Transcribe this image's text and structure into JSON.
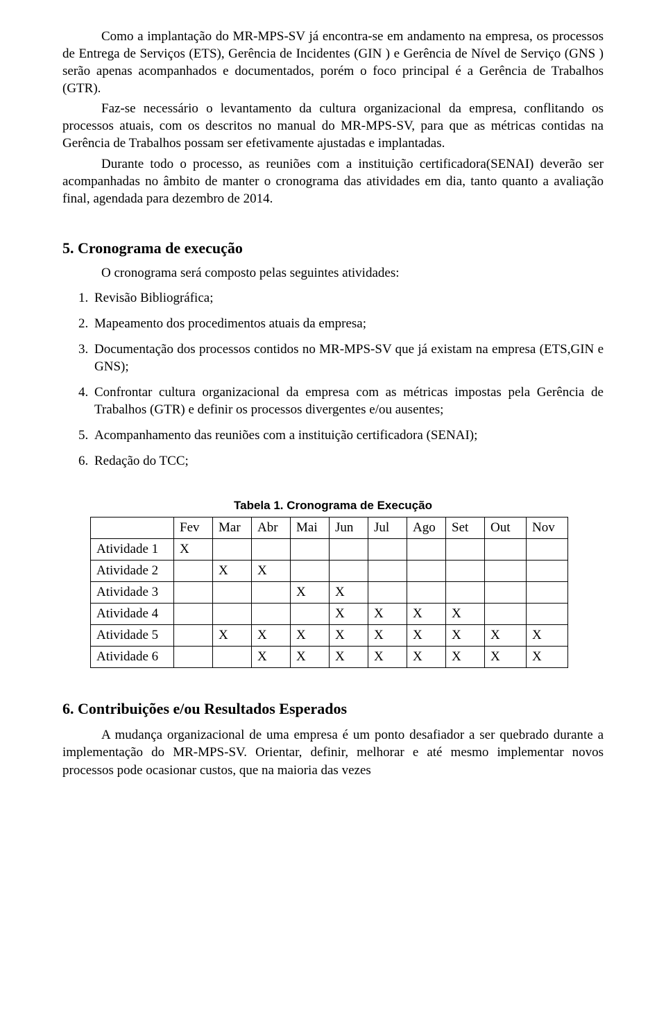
{
  "paragraphs": {
    "p1": "Como a implantação do MR-MPS-SV já encontra-se em andamento na empresa, os processos de Entrega de Serviços (ETS), Gerência de Incidentes (GIN ) e Gerência de Nível de Serviço (GNS ) serão apenas acompanhados e documentados, porém o foco principal é a Gerência de Trabalhos (GTR).",
    "p2": "Faz-se necessário o levantamento da cultura organizacional da empresa, conflitando os processos atuais, com os descritos no manual do MR-MPS-SV, para que as métricas contidas na Gerência de Trabalhos possam ser efetivamente ajustadas e implantadas.",
    "p3": "Durante todo o processo, as reuniões com a instituição certificadora(SENAI) deverão ser acompanhadas no âmbito de manter o cronograma das atividades em dia, tanto quanto a avaliação final, agendada para dezembro de 2014."
  },
  "section5": {
    "heading": "5. Cronograma de execução",
    "intro": "O cronograma será composto pelas seguintes atividades:",
    "items": [
      "Revisão Bibliográfica;",
      "Mapeamento dos procedimentos atuais da empresa;",
      "Documentação dos processos contidos no MR-MPS-SV que já existam na empresa (ETS,GIN e GNS);",
      "Confrontar cultura organizacional da empresa com as métricas impostas pela Gerência de Trabalhos (GTR) e definir os processos divergentes e/ou ausentes;",
      "Acompanhamento das reuniões com a instituição certificadora (SENAI);",
      "Redação do TCC;"
    ]
  },
  "table": {
    "caption": "Tabela 1. Cronograma de Execução",
    "months": [
      "Fev",
      "Mar",
      "Abr",
      "Mai",
      "Jun",
      "Jul",
      "Ago",
      "Set",
      "Out",
      "Nov"
    ],
    "rows": [
      {
        "label": "Atividade 1",
        "marks": [
          "X",
          "",
          "",
          "",
          "",
          "",
          "",
          "",
          "",
          ""
        ]
      },
      {
        "label": "Atividade 2",
        "marks": [
          "",
          "X",
          "X",
          "",
          "",
          "",
          "",
          "",
          "",
          ""
        ]
      },
      {
        "label": "Atividade 3",
        "marks": [
          "",
          "",
          "",
          "X",
          "X",
          "",
          "",
          "",
          "",
          ""
        ]
      },
      {
        "label": "Atividade 4",
        "marks": [
          "",
          "",
          "",
          "",
          "X",
          "X",
          "X",
          "X",
          "",
          ""
        ]
      },
      {
        "label": "Atividade 5",
        "marks": [
          "",
          "X",
          "X",
          "X",
          "X",
          "X",
          "X",
          "X",
          "X",
          "X"
        ]
      },
      {
        "label": "Atividade 6",
        "marks": [
          "",
          "",
          "X",
          "X",
          "X",
          "X",
          "X",
          "X",
          "X",
          "X"
        ]
      }
    ]
  },
  "section6": {
    "heading": "6. Contribuições e/ou Resultados Esperados",
    "p1": "A mudança organizacional  de uma empresa é um ponto desafiador a ser quebrado durante a implementação do MR-MPS-SV. Orientar, definir, melhorar e até mesmo implementar novos processos pode ocasionar custos, que na maioria das vezes"
  }
}
